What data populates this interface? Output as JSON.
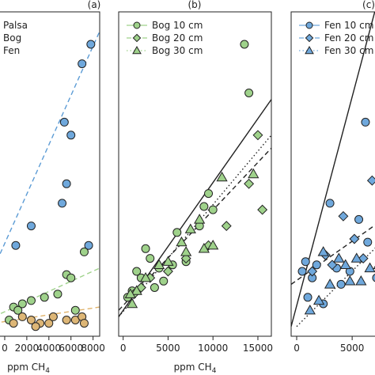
{
  "colors": {
    "Palsa": "#ddb676",
    "Bog": "#9fd28b",
    "Fen": "#6fa8dc",
    "frame": "#222222",
    "fit_palsa": "#e0b36b",
    "fit_bog": "#9fd28b",
    "fit_fen": "#5b9bd5"
  },
  "chart_data": [
    {
      "type": "scatter",
      "panel": "(a)",
      "xlabel_main": "ppm CH",
      "xlabel_sub": "4",
      "xlim": [
        -1000,
        8600
      ],
      "ylim": [
        0,
        100
      ],
      "xticks": [
        {
          "v": 0,
          "label": "0"
        },
        {
          "v": 2000,
          "label": "2000"
        },
        {
          "v": 4000,
          "label": "4000"
        },
        {
          "v": 6000,
          "label": "6000"
        },
        {
          "v": 8000,
          "label": "8000"
        }
      ],
      "legend": [
        {
          "label": "Palsa",
          "marker": "circle",
          "color_key": "Palsa"
        },
        {
          "label": "Bog",
          "marker": "circle",
          "color_key": "Bog"
        },
        {
          "label": "Fen",
          "marker": "circle",
          "color_key": "Fen"
        }
      ],
      "series": [
        {
          "name": "Fen",
          "marker": "circle",
          "color_key": "Fen",
          "points": [
            [
              7800,
              90
            ],
            [
              7000,
              84
            ],
            [
              5400,
              66
            ],
            [
              6000,
              62
            ],
            [
              5600,
              47
            ],
            [
              5200,
              41
            ],
            [
              2400,
              34
            ],
            [
              1000,
              28
            ],
            [
              7600,
              28
            ]
          ]
        },
        {
          "name": "Bog",
          "marker": "circle",
          "color_key": "Bog",
          "points": [
            [
              7200,
              26
            ],
            [
              5600,
              19
            ],
            [
              6000,
              18
            ],
            [
              4800,
              13
            ],
            [
              3600,
              12
            ],
            [
              2400,
              11
            ],
            [
              1600,
              10
            ],
            [
              800,
              9
            ],
            [
              1200,
              8
            ],
            [
              6400,
              8
            ],
            [
              400,
              5
            ]
          ]
        },
        {
          "name": "Palsa",
          "marker": "circle",
          "color_key": "Palsa",
          "points": [
            [
              1600,
              6
            ],
            [
              2400,
              5
            ],
            [
              3200,
              4
            ],
            [
              4000,
              4
            ],
            [
              4400,
              6
            ],
            [
              5600,
              5
            ],
            [
              6400,
              5
            ],
            [
              7000,
              6
            ],
            [
              7200,
              4
            ],
            [
              2800,
              3
            ],
            [
              800,
              4
            ]
          ]
        }
      ],
      "fits": [
        {
          "name": "Fen",
          "style": "dashed",
          "color_key": "fit_fen",
          "from": [
            -1000,
            21
          ],
          "to": [
            8600,
            94
          ]
        },
        {
          "name": "Bog",
          "style": "dashed",
          "color_key": "fit_bog",
          "from": [
            -1000,
            6
          ],
          "to": [
            8600,
            21
          ]
        },
        {
          "name": "Palsa",
          "style": "dashed",
          "color_key": "fit_palsa",
          "from": [
            -1000,
            4
          ],
          "to": [
            8600,
            9
          ]
        }
      ]
    },
    {
      "type": "scatter",
      "panel": "(b)",
      "xlabel_main": "ppm CH",
      "xlabel_sub": "4",
      "xlim": [
        -500,
        16500
      ],
      "ylim": [
        0,
        100
      ],
      "xticks": [
        {
          "v": 0,
          "label": "0"
        },
        {
          "v": 5000,
          "label": "5000"
        },
        {
          "v": 10000,
          "label": "10000"
        },
        {
          "v": 15000,
          "label": "15000"
        }
      ],
      "legend": [
        {
          "label": "Bog 10 cm",
          "marker": "circle",
          "line": "solid",
          "color_key": "Bog"
        },
        {
          "label": "Bog 20 cm",
          "marker": "diamond",
          "line": "dashed",
          "color_key": "Bog"
        },
        {
          "label": "Bog 30 cm",
          "marker": "triangle",
          "line": "dotted",
          "color_key": "Bog"
        }
      ],
      "series": [
        {
          "name": "Bog 10 cm",
          "marker": "circle",
          "color_key": "Bog",
          "points": [
            [
              13500,
              90
            ],
            [
              14000,
              75
            ],
            [
              9500,
              44
            ],
            [
              9000,
              40
            ],
            [
              8500,
              34
            ],
            [
              10000,
              39
            ],
            [
              6000,
              32
            ],
            [
              3000,
              24
            ],
            [
              2500,
              27
            ],
            [
              1500,
              20
            ],
            [
              4000,
              21
            ],
            [
              5500,
              22
            ],
            [
              7000,
              23
            ],
            [
              2000,
              18
            ],
            [
              1000,
              14
            ],
            [
              500,
              12
            ],
            [
              3500,
              15
            ],
            [
              4500,
              17
            ]
          ]
        },
        {
          "name": "Bog 20 cm",
          "marker": "diamond",
          "color_key": "Bog",
          "points": [
            [
              15000,
              62
            ],
            [
              15500,
              39
            ],
            [
              14000,
              47
            ],
            [
              11500,
              34
            ],
            [
              9500,
              28
            ],
            [
              7000,
              24
            ],
            [
              5000,
              20
            ],
            [
              3000,
              18
            ],
            [
              2000,
              15
            ],
            [
              1200,
              13
            ]
          ]
        },
        {
          "name": "Bog 30 cm",
          "marker": "triangle",
          "color_key": "Bog",
          "points": [
            [
              11000,
              49
            ],
            [
              14500,
              50
            ],
            [
              8500,
              36
            ],
            [
              7500,
              33
            ],
            [
              9000,
              27
            ],
            [
              6500,
              29
            ],
            [
              10000,
              28
            ],
            [
              7000,
              26
            ],
            [
              5000,
              23
            ],
            [
              4000,
              22
            ],
            [
              2500,
              18
            ],
            [
              1500,
              14
            ],
            [
              1000,
              10
            ],
            [
              800,
              13
            ]
          ]
        }
      ],
      "fits": [
        {
          "name": "Bog 10 cm",
          "style": "solid",
          "color_key": "frame",
          "from": [
            -500,
            6
          ],
          "to": [
            16500,
            73
          ]
        },
        {
          "name": "Bog 20 cm",
          "style": "dashed",
          "color_key": "frame",
          "from": [
            -500,
            8
          ],
          "to": [
            16500,
            58
          ]
        },
        {
          "name": "Bog 30 cm",
          "style": "dotted",
          "color_key": "frame",
          "from": [
            -500,
            6
          ],
          "to": [
            16500,
            62
          ]
        }
      ]
    },
    {
      "type": "scatter",
      "panel": "(c)",
      "xlabel_main": "",
      "xlabel_sub": "",
      "xlim": [
        -500,
        8200
      ],
      "ylim": [
        0,
        100
      ],
      "xticks": [
        {
          "v": 0,
          "label": "0"
        },
        {
          "v": 5000,
          "label": "5000"
        }
      ],
      "legend": [
        {
          "label": "Fen 10 cm",
          "marker": "circle",
          "line": "solid",
          "color_key": "Fen"
        },
        {
          "label": "Fen 20 cm",
          "marker": "diamond",
          "line": "dashed",
          "color_key": "Fen"
        },
        {
          "label": "Fen 30 cm",
          "marker": "triangle",
          "line": "dotted",
          "color_key": "Fen"
        }
      ],
      "series": [
        {
          "name": "Fen 10 cm",
          "marker": "circle",
          "color_key": "Fen",
          "points": [
            [
              6200,
              66
            ],
            [
              3000,
              41
            ],
            [
              5600,
              36
            ],
            [
              1800,
              22
            ],
            [
              1400,
              18
            ],
            [
              500,
              20
            ],
            [
              800,
              23
            ],
            [
              3600,
              21
            ],
            [
              4800,
              20
            ],
            [
              6400,
              29
            ],
            [
              7200,
              18
            ],
            [
              4000,
              16
            ],
            [
              1000,
              12
            ],
            [
              2400,
              10
            ]
          ]
        },
        {
          "name": "Fen 20 cm",
          "marker": "diamond",
          "color_key": "Fen",
          "points": [
            [
              6800,
              48
            ],
            [
              7800,
              45
            ],
            [
              4200,
              37
            ],
            [
              5200,
              30
            ],
            [
              6000,
              24
            ],
            [
              3200,
              22
            ],
            [
              2600,
              25
            ],
            [
              1400,
              20
            ]
          ]
        },
        {
          "name": "Fen 30 cm",
          "marker": "triangle",
          "color_key": "Fen",
          "points": [
            [
              2400,
              26
            ],
            [
              3800,
              24
            ],
            [
              4400,
              22
            ],
            [
              5400,
              24
            ],
            [
              6600,
              21
            ],
            [
              7400,
              22
            ],
            [
              3000,
              16
            ],
            [
              2000,
              11
            ],
            [
              1200,
              8
            ],
            [
              4800,
              17
            ],
            [
              5800,
              17
            ]
          ]
        }
      ],
      "fits": [
        {
          "name": "Fen 10 cm",
          "style": "solid",
          "color_key": "frame",
          "from": [
            -500,
            3
          ],
          "to": [
            8200,
            115
          ]
        },
        {
          "name": "Fen 20 cm",
          "style": "dashed",
          "color_key": "frame",
          "from": [
            -500,
            16
          ],
          "to": [
            8200,
            37
          ]
        },
        {
          "name": "Fen 30 cm",
          "style": "dotted",
          "color_key": "frame",
          "from": [
            0,
            3
          ],
          "to": [
            8200,
            31
          ]
        }
      ]
    }
  ]
}
